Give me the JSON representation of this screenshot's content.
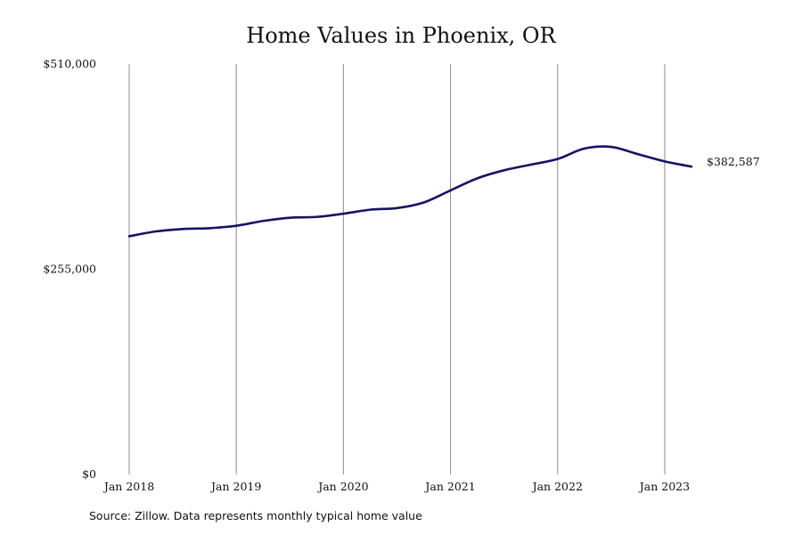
{
  "chart_data": {
    "type": "line",
    "title": "Home Values in Phoenix, OR",
    "source": "Source: Zillow. Data represents monthly typical home value",
    "ylim": [
      0,
      510000
    ],
    "y_ticks": [
      {
        "value": 510000,
        "label": "$510,000"
      },
      {
        "value": 255000,
        "label": "$255,000"
      },
      {
        "value": 0,
        "label": "$0"
      }
    ],
    "x_ticks": [
      {
        "value": "2018-01",
        "label": "Jan 2018"
      },
      {
        "value": "2019-01",
        "label": "Jan 2019"
      },
      {
        "value": "2020-01",
        "label": "Jan 2020"
      },
      {
        "value": "2021-01",
        "label": "Jan 2021"
      },
      {
        "value": "2022-01",
        "label": "Jan 2022"
      },
      {
        "value": "2023-01",
        "label": "Jan 2023"
      }
    ],
    "xlim": [
      "2018-01",
      "2023-04"
    ],
    "grid": {
      "vertical": true,
      "horizontal": false
    },
    "end_label": "$382,587",
    "series": [
      {
        "color": "#141466",
        "points": [
          {
            "x": "2018-01",
            "y": 296000
          },
          {
            "x": "2018-04",
            "y": 302000
          },
          {
            "x": "2018-07",
            "y": 305000
          },
          {
            "x": "2018-10",
            "y": 306000
          },
          {
            "x": "2019-01",
            "y": 309000
          },
          {
            "x": "2019-04",
            "y": 315000
          },
          {
            "x": "2019-07",
            "y": 319000
          },
          {
            "x": "2019-10",
            "y": 320000
          },
          {
            "x": "2020-01",
            "y": 324000
          },
          {
            "x": "2020-04",
            "y": 329000
          },
          {
            "x": "2020-07",
            "y": 331000
          },
          {
            "x": "2020-10",
            "y": 338000
          },
          {
            "x": "2021-01",
            "y": 353000
          },
          {
            "x": "2021-04",
            "y": 368000
          },
          {
            "x": "2021-07",
            "y": 378000
          },
          {
            "x": "2021-10",
            "y": 385000
          },
          {
            "x": "2022-01",
            "y": 392000
          },
          {
            "x": "2022-04",
            "y": 405000
          },
          {
            "x": "2022-07",
            "y": 407000
          },
          {
            "x": "2022-10",
            "y": 398000
          },
          {
            "x": "2023-01",
            "y": 389000
          },
          {
            "x": "2023-04",
            "y": 382587
          }
        ]
      }
    ]
  }
}
